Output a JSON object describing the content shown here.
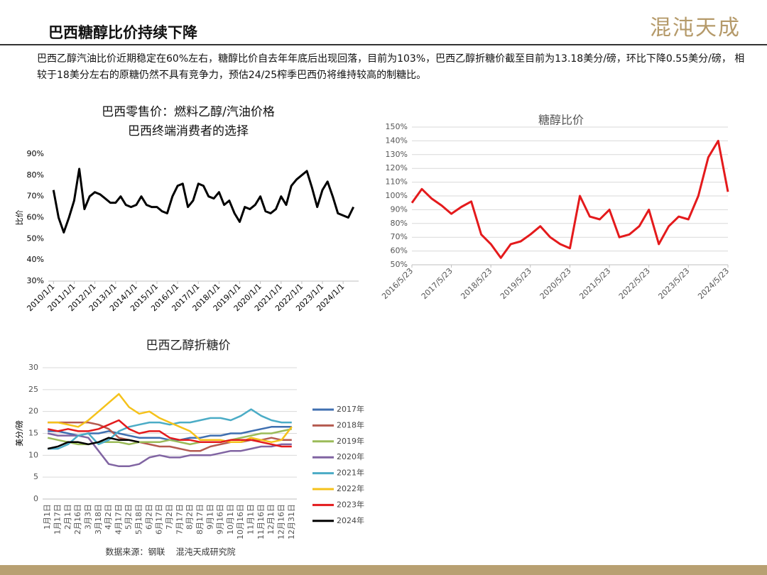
{
  "header": {
    "title": "巴西糖醇比价持续下降",
    "logo": "混沌天成",
    "description": "巴西乙醇汽油比价近期稳定在60%左右，糖醇比价自去年年底后出现回落，目前为103%，巴西乙醇折糖价截至目前为13.18美分/磅，环比下降0.55美分/磅， 相较于18美分左右的原糖仍然不具有竞争力，预估24/25榨季巴西仍将维持较高的制糖比。"
  },
  "source": "数据来源：钢联    混沌天成研究院",
  "chart_data": [
    {
      "type": "line",
      "title": "巴西零售价：燃料乙醇/汽油价格",
      "subtitle": "巴西终端消费者的选择",
      "ylabel": "比价",
      "color": "#000000",
      "grid": false,
      "x": [
        "2010/1/1",
        "2010/4/1",
        "2010/7/1",
        "2010/10/1",
        "2011/1/1",
        "2011/4/1",
        "2011/7/1",
        "2011/10/1",
        "2012/1/1",
        "2012/4/1",
        "2012/7/1",
        "2012/10/1",
        "2013/1/1",
        "2013/4/1",
        "2013/7/1",
        "2013/10/1",
        "2014/1/1",
        "2014/4/1",
        "2014/7/1",
        "2014/10/1",
        "2015/1/1",
        "2015/4/1",
        "2015/7/1",
        "2015/10/1",
        "2016/1/1",
        "2016/4/1",
        "2016/7/1",
        "2016/10/1",
        "2017/1/1",
        "2017/4/1",
        "2017/7/1",
        "2017/10/1",
        "2018/1/1",
        "2018/4/1",
        "2018/7/1",
        "2018/10/1",
        "2019/1/1",
        "2019/4/1",
        "2019/7/1",
        "2019/10/1",
        "2020/1/1",
        "2020/4/1",
        "2020/7/1",
        "2020/10/1",
        "2021/1/1",
        "2021/4/1",
        "2021/7/1",
        "2021/10/1",
        "2022/1/1",
        "2022/4/1",
        "2022/7/1",
        "2022/10/1",
        "2023/1/1",
        "2023/4/1",
        "2023/7/1",
        "2023/10/1",
        "2024/1/1",
        "2024/4/1",
        "2024/7/1"
      ],
      "values": [
        73,
        60,
        53,
        60,
        68,
        83,
        64,
        70,
        72,
        71,
        69,
        67,
        67,
        70,
        66,
        65,
        66,
        70,
        66,
        65,
        65,
        63,
        62,
        70,
        75,
        76,
        65,
        68,
        76,
        75,
        70,
        69,
        72,
        66,
        68,
        62,
        58,
        65,
        64,
        66,
        70,
        63,
        62,
        64,
        70,
        66,
        75,
        78,
        80,
        82,
        74,
        65,
        73,
        77,
        70,
        62,
        61,
        60,
        65
      ],
      "xlim": [
        "2009/10/1",
        "2024/10/1"
      ],
      "xticks": [
        "2010/1/1",
        "2011/1/1",
        "2012/1/1",
        "2013/1/1",
        "2014/1/1",
        "2015/1/1",
        "2016/1/1",
        "2017/1/1",
        "2018/1/1",
        "2019/1/1",
        "2020/1/1",
        "2021/1/1",
        "2022/1/1",
        "2023/1/1",
        "2024/1/1"
      ],
      "ylim": [
        30,
        90
      ],
      "yticks": [
        {
          "value": 30,
          "label": "30%"
        },
        {
          "value": 40,
          "label": "40%"
        },
        {
          "value": 50,
          "label": "50%"
        },
        {
          "value": 60,
          "label": "60%"
        },
        {
          "value": 70,
          "label": "70%"
        },
        {
          "value": 80,
          "label": "80%"
        },
        {
          "value": 90,
          "label": "90%"
        }
      ]
    },
    {
      "type": "line",
      "title": "糖醇比价",
      "color": "#e41a1c",
      "grid": true,
      "x": [
        "2016/5/23",
        "2016/8/23",
        "2016/11/23",
        "2017/2/23",
        "2017/5/23",
        "2017/8/23",
        "2017/11/23",
        "2018/2/23",
        "2018/5/23",
        "2018/8/23",
        "2018/11/23",
        "2019/2/23",
        "2019/5/23",
        "2019/8/23",
        "2019/11/23",
        "2020/2/23",
        "2020/5/23",
        "2020/8/23",
        "2020/11/23",
        "2021/2/23",
        "2021/5/23",
        "2021/8/23",
        "2021/11/23",
        "2022/2/23",
        "2022/5/23",
        "2022/8/23",
        "2022/11/23",
        "2023/2/23",
        "2023/5/23",
        "2023/8/23",
        "2023/11/23",
        "2024/2/23",
        "2024/5/23"
      ],
      "values": [
        95,
        105,
        98,
        93,
        87,
        92,
        96,
        72,
        65,
        55,
        65,
        67,
        72,
        78,
        70,
        65,
        62,
        100,
        85,
        83,
        90,
        70,
        72,
        78,
        90,
        65,
        78,
        85,
        83,
        100,
        128,
        140,
        103
      ],
      "xlim": [
        "2016/5/23",
        "2024/5/23"
      ],
      "xticks": [
        "2016/5/23",
        "2017/5/23",
        "2018/5/23",
        "2019/5/23",
        "2020/5/23",
        "2021/5/23",
        "2022/5/23",
        "2023/5/23",
        "2024/5/23"
      ],
      "ylim": [
        50,
        150
      ],
      "yticks": [
        {
          "value": 50,
          "label": "50%"
        },
        {
          "value": 60,
          "label": "60%"
        },
        {
          "value": 70,
          "label": "70%"
        },
        {
          "value": 80,
          "label": "80%"
        },
        {
          "value": 90,
          "label": "90%"
        },
        {
          "value": 100,
          "label": "100%"
        },
        {
          "value": 110,
          "label": "110%"
        },
        {
          "value": 120,
          "label": "120%"
        },
        {
          "value": 130,
          "label": "130%"
        },
        {
          "value": 140,
          "label": "140%"
        },
        {
          "value": 150,
          "label": "150%"
        }
      ]
    },
    {
      "type": "line",
      "title": "巴西乙醇折糖价",
      "ylabel": "美分/磅",
      "grid": true,
      "legend": "right",
      "categories": [
        "1月1日",
        "1月17日",
        "2月1日",
        "2月16日",
        "3月3日",
        "3月18日",
        "4月2日",
        "4月17日",
        "5月2日",
        "5月18日",
        "6月2日",
        "6月17日",
        "7月2日",
        "7月17日",
        "8月2日",
        "8月17日",
        "9月1日",
        "9月16日",
        "10月1日",
        "10月16日",
        "11月1日",
        "11月16日",
        "12月1日",
        "12月16日",
        "12月31日"
      ],
      "ylim": [
        0,
        30
      ],
      "yticks": [
        0,
        5,
        10,
        15,
        20,
        25,
        30
      ],
      "series": [
        {
          "name": "2017年",
          "color": "#3f6fb0",
          "values": [
            15.5,
            15.5,
            15,
            14.5,
            15,
            15,
            15.5,
            15,
            14.5,
            14,
            14,
            14,
            13.5,
            13.5,
            14,
            14,
            14.5,
            14.5,
            15,
            15,
            15.5,
            16,
            16.5,
            16.5,
            16.5
          ]
        },
        {
          "name": "2018年",
          "color": "#b55a4f",
          "values": [
            17.5,
            17.5,
            17.5,
            17.5,
            17.5,
            17,
            16,
            14,
            13.5,
            13,
            12.5,
            12,
            12,
            11.5,
            11,
            11,
            12,
            12.5,
            13,
            13,
            13.5,
            13.5,
            14,
            13.5,
            13.5
          ]
        },
        {
          "name": "2019年",
          "color": "#9bbb59",
          "values": [
            14,
            13.5,
            13,
            12.5,
            12.5,
            13,
            13,
            13,
            12.5,
            13,
            13,
            13,
            13.5,
            13,
            12.5,
            13,
            13,
            13,
            13.5,
            14,
            14.5,
            15,
            15,
            15.5,
            16
          ]
        },
        {
          "name": "2020年",
          "color": "#8064a2",
          "values": [
            15,
            14.5,
            14.5,
            14.5,
            14,
            11,
            8,
            7.5,
            7.5,
            8,
            9.5,
            10,
            9.5,
            9.5,
            10,
            10,
            10,
            10.5,
            11,
            11,
            11.5,
            12,
            12,
            12.5,
            12.5
          ]
        },
        {
          "name": "2021年",
          "color": "#4bacc6",
          "values": [
            11.5,
            11.5,
            12.5,
            14.5,
            15,
            12.5,
            13.5,
            15.5,
            16.5,
            17,
            17.5,
            17.5,
            17,
            17.5,
            17.5,
            18,
            18.5,
            18.5,
            18,
            19,
            20.5,
            19,
            18,
            17.5,
            17.5
          ]
        },
        {
          "name": "2022年",
          "color": "#f5c21b",
          "values": [
            17.5,
            17.5,
            17,
            16.5,
            18,
            20,
            22,
            24,
            21,
            19.5,
            20,
            18.5,
            17.5,
            16.5,
            15.5,
            13.5,
            13.5,
            13.5,
            13,
            13,
            14,
            13.5,
            13,
            13.5,
            16.5
          ]
        },
        {
          "name": "2023年",
          "color": "#e31a1c",
          "values": [
            16,
            15.5,
            16,
            15.5,
            15.5,
            16,
            17,
            18,
            16,
            15,
            15.5,
            15.5,
            14,
            13.5,
            13.5,
            13,
            13,
            13,
            13.5,
            13.5,
            13.5,
            13,
            12.5,
            12,
            12
          ]
        },
        {
          "name": "2024年",
          "color": "#000000",
          "values": [
            11.5,
            12,
            13,
            13,
            12.5,
            13,
            14,
            13.5,
            13.5,
            13,
            null,
            null,
            null,
            null,
            null,
            null,
            null,
            null,
            null,
            null,
            null,
            null,
            null,
            null,
            null
          ]
        }
      ]
    }
  ]
}
